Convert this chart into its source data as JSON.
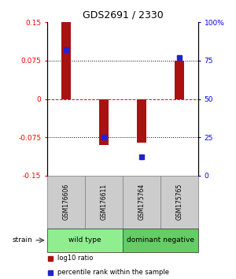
{
  "title": "GDS2691 / 2330",
  "samples": [
    "GSM176606",
    "GSM176611",
    "GSM175764",
    "GSM175765"
  ],
  "log10_ratio": [
    0.15,
    -0.09,
    -0.085,
    0.075
  ],
  "percentile_rank": [
    82,
    25,
    12,
    77
  ],
  "groups": [
    {
      "name": "wild type",
      "samples": [
        0,
        1
      ],
      "color": "#90EE90"
    },
    {
      "name": "dominant negative",
      "samples": [
        2,
        3
      ],
      "color": "#66CC66"
    }
  ],
  "bar_color": "#aa1111",
  "dot_color": "#2222cc",
  "ylim_left": [
    -0.15,
    0.15
  ],
  "ylim_right": [
    0,
    100
  ],
  "yticks_left": [
    -0.15,
    -0.075,
    0,
    0.075,
    0.15
  ],
  "yticks_right": [
    0,
    25,
    50,
    75,
    100
  ],
  "ytick_labels_left": [
    "-0.15",
    "-0.075",
    "0",
    "0.075",
    "0.15"
  ],
  "ytick_labels_right": [
    "0",
    "25",
    "50",
    "75",
    "100%"
  ],
  "hlines": [
    0.075,
    0,
    -0.075
  ],
  "hline_styles": [
    "dotted",
    "dashed",
    "dotted"
  ],
  "hline_colors": [
    "black",
    "red",
    "black"
  ],
  "bar_width": 0.25,
  "strain_label": "strain",
  "legend_items": [
    {
      "label": "log10 ratio",
      "color": "#aa1111"
    },
    {
      "label": "percentile rank within the sample",
      "color": "#2222cc"
    }
  ],
  "sample_box_color": "#cccccc",
  "figsize": [
    3.0,
    3.54
  ],
  "dpi": 100
}
